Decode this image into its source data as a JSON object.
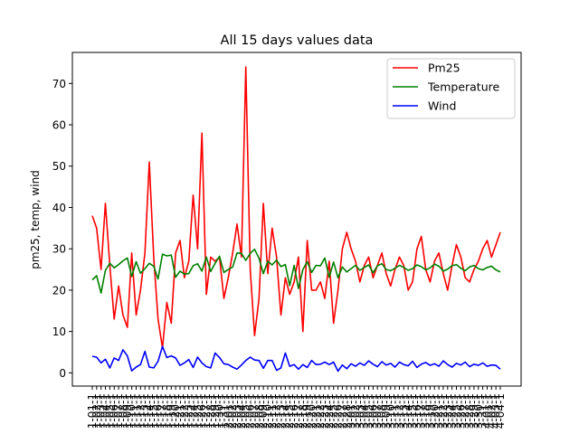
{
  "chart_data": {
    "type": "line",
    "title": "All 15 days values data",
    "xlabel": "",
    "ylabel": "pm25, temp, wind",
    "ylim": [
      -3.2,
      77.5
    ],
    "yticks": [
      0,
      10,
      20,
      30,
      40,
      50,
      60,
      70
    ],
    "grid": false,
    "legend_position": "top-right",
    "x": [
      "1-01-1",
      "1-02-1",
      "1-03-1",
      "1-04-1",
      "1-05-1",
      "1-06-1",
      "1-07-1",
      "1-08-1",
      "1-09-1",
      "1-10-1",
      "1-11-1",
      "1-12-1",
      "1-13-1",
      "1-14-1",
      "1-15-1",
      "1-16-1",
      "1-17-1",
      "1-18-1",
      "1-19-1",
      "1-20-1",
      "1-21-1",
      "1-22-1",
      "1-23-1",
      "1-24-1",
      "1-25-1",
      "1-26-1",
      "1-27-1",
      "1-28-1",
      "1-29-1",
      "1-30-1",
      "1-31-1",
      "2-01-1",
      "2-02-1",
      "2-03-1",
      "2-04-1",
      "2-05-1",
      "2-06-1",
      "2-07-1",
      "2-08-1",
      "2-09-1",
      "2-10-1",
      "2-11-1",
      "2-12-1",
      "2-13-1",
      "2-14-1",
      "2-15-1",
      "2-16-1",
      "2-17-1",
      "2-18-1",
      "2-19-1",
      "2-20-1",
      "2-21-1",
      "2-22-1",
      "2-23-1",
      "2-24-1",
      "2-25-1",
      "2-26-1",
      "2-27-1",
      "2-28-1",
      "3-01-1",
      "3-02-1",
      "3-03-1",
      "3-04-1",
      "3-05-1",
      "3-06-1",
      "3-07-1",
      "3-08-1",
      "3-09-1",
      "3-10-1",
      "3-11-1",
      "3-12-1",
      "3-13-1",
      "3-14-1",
      "3-15-1",
      "3-16-1",
      "3-17-1",
      "3-18-1",
      "3-19-1",
      "3-20-1",
      "3-21-1",
      "3-22-1",
      "3-23-1",
      "3-24-1",
      "3-25-1",
      "3-26-1",
      "3-27-1",
      "3-28-1",
      "3-29-1",
      "3-30-1",
      "3-31-1",
      "4-01-1",
      "4-02-1",
      "4-03-1",
      "4-04-1"
    ],
    "series": [
      {
        "name": "Pm25",
        "color": "#ff0000",
        "values": [
          38,
          35,
          25,
          41,
          26,
          13,
          21,
          14,
          11,
          29,
          14,
          20,
          29,
          51,
          28,
          13,
          6,
          17,
          12,
          29,
          32,
          23,
          27,
          43,
          30,
          58,
          19,
          28,
          27,
          28,
          18,
          23,
          29,
          36,
          28,
          74,
          25,
          9,
          18,
          41,
          24,
          35,
          28,
          14,
          23,
          19,
          22,
          28,
          10,
          32,
          20,
          20,
          22,
          18,
          27,
          12,
          20,
          30,
          34,
          30,
          27,
          22,
          26,
          28,
          23,
          26,
          29,
          24,
          21,
          25,
          28,
          26,
          20,
          22,
          30,
          33,
          25,
          22,
          27,
          29,
          24,
          20,
          26,
          31,
          28,
          23,
          22,
          25,
          27,
          30,
          32,
          28,
          31,
          34
        ]
      },
      {
        "name": "Temperature",
        "color": "#008000",
        "values": [
          22.5,
          23.5,
          19.3,
          24.8,
          26.5,
          25.4,
          26.2,
          27.1,
          27.8,
          23.3,
          26.9,
          24.1,
          25.2,
          26.5,
          25.8,
          22.7,
          28.7,
          28.3,
          28.5,
          23.1,
          24.6,
          23.9,
          24,
          25.9,
          26.4,
          24.6,
          28,
          24.5,
          26.5,
          28.2,
          24.3,
          25,
          25.6,
          29,
          28.9,
          27.2,
          28.9,
          29.9,
          27.7,
          24,
          27,
          26.1,
          27.3,
          25.7,
          26.2,
          21.1,
          26,
          20.4,
          25,
          26.9,
          24.3,
          26,
          25.9,
          27.8,
          23.1,
          26.8,
          23,
          25.6,
          24.4,
          25.2,
          26,
          24.8,
          25.5,
          26.1,
          24.2,
          25.9,
          26.4,
          25,
          24.7,
          25.3,
          26,
          25.5,
          24.8,
          25.2,
          26.1,
          25.7,
          24.9,
          25.4,
          26.3,
          25.8,
          24.6,
          25.1,
          25.9,
          26.2,
          25.3,
          24.7,
          25.6,
          26,
          25.2,
          24.9,
          25.5,
          25.8,
          24.9,
          24.4
        ]
      },
      {
        "name": "Wind",
        "color": "#0000ff",
        "values": [
          4,
          3.8,
          2.4,
          3.3,
          1.2,
          3.6,
          3,
          5.6,
          4.1,
          0.5,
          1.4,
          2,
          5.2,
          1.4,
          1.2,
          2.8,
          6.4,
          3.7,
          4.1,
          3.6,
          1.8,
          2.4,
          3.2,
          1.3,
          3.8,
          2.4,
          1.5,
          1.2,
          4.8,
          3.7,
          2.2,
          2,
          1.4,
          0.9,
          1.9,
          3,
          3.8,
          3.1,
          3,
          1.1,
          3,
          3,
          0.6,
          1.2,
          4.8,
          1.6,
          2,
          0.9,
          2,
          1.3,
          3,
          2,
          2.1,
          2.6,
          2,
          2.6,
          0.4,
          1.9,
          1,
          2.2,
          1.6,
          2.4,
          1.8,
          2.9,
          2.1,
          1.5,
          2.7,
          1.9,
          2.3,
          1.4,
          2.6,
          2,
          1.7,
          2.8,
          1.3,
          2.1,
          2.5,
          1.8,
          2.2,
          1.6,
          2.9,
          2,
          1.4,
          2.3,
          1.9,
          2.6,
          1.5,
          2.1,
          1.8,
          2.4,
          1.6,
          1.9,
          1.8,
          0.9
        ]
      }
    ]
  }
}
